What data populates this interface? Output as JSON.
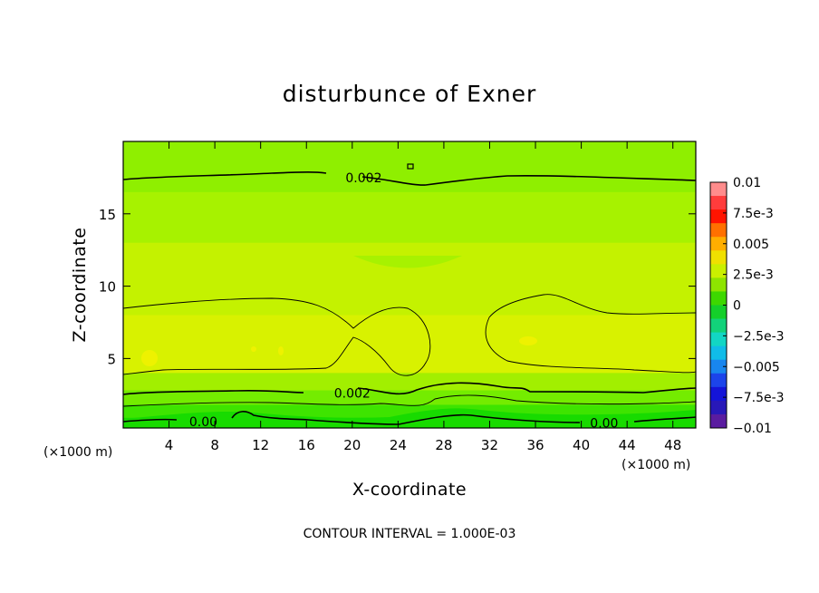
{
  "chart_data": {
    "type": "heatmap",
    "title": "disturbunce of Exner",
    "xlabel": "X-coordinate",
    "ylabel": "Z-coordinate",
    "x_unit_left": "(×1000 m)",
    "x_unit_right": "(×1000 m)",
    "xlim": [
      0,
      50
    ],
    "ylim": [
      0.2,
      20
    ],
    "x_ticks": [
      "4",
      "8",
      "12",
      "16",
      "20",
      "24",
      "28",
      "32",
      "36",
      "40",
      "44",
      "48"
    ],
    "y_ticks": [
      "5",
      "10",
      "15"
    ],
    "colorbar": {
      "labels": [
        "0.01",
        "7.5e-3",
        "0.005",
        "2.5e-3",
        "0",
        "−2.5e-3",
        "−0.005",
        "−7.5e-3",
        "−0.01"
      ],
      "levels": [
        0.01,
        0.0075,
        0.005,
        0.0025,
        0,
        -0.0025,
        -0.005,
        -0.0075,
        -0.01
      ]
    },
    "contour_labels": [
      {
        "text": "0.002",
        "x": 21,
        "y": 17.5
      },
      {
        "text": "0.002",
        "x": 20,
        "y": 2.6
      },
      {
        "text": "0.00",
        "x": 7,
        "y": 0.65
      },
      {
        "text": "0.00",
        "x": 42,
        "y": 0.55
      }
    ],
    "footnote": "CONTOUR INTERVAL = 1.000E-03",
    "bands": [
      {
        "level": "0.0022",
        "color": "#8fef00",
        "z_bottom": 16.5,
        "z_top": 20
      },
      {
        "level": "0.0025",
        "color": "#a7f200",
        "z_bottom": 13,
        "z_top": 16.5
      },
      {
        "level": "0.0028",
        "color": "#c4f200",
        "z_bottom": 8,
        "z_top": 13
      },
      {
        "level": "0.0030",
        "color": "#d8f200",
        "z_bottom": 4,
        "z_top": 8
      },
      {
        "level": "0.0018",
        "color": "#a2ef00",
        "z_bottom": 2.8,
        "z_top": 4
      },
      {
        "level": "0.0012",
        "color": "#74ec00",
        "z_bottom": 1.8,
        "z_top": 2.8
      },
      {
        "level": "0.0006",
        "color": "#3ee400",
        "z_bottom": 0.9,
        "z_top": 1.8
      },
      {
        "level": "0.0000",
        "color": "#18db00",
        "z_bottom": 0.2,
        "z_top": 0.9
      }
    ],
    "colors": {
      "cb": [
        "#ff8c8c",
        "#ff3c3c",
        "#ff1400",
        "#ff7000",
        "#ffae00",
        "#f0e000",
        "#caf000",
        "#8ee400",
        "#3dd800",
        "#14cf2a",
        "#12d27a",
        "#12d6c4",
        "#10bce8",
        "#1886ee",
        "#1c44ea",
        "#1414d8",
        "#2818b8",
        "#5a1ca0"
      ]
    }
  }
}
